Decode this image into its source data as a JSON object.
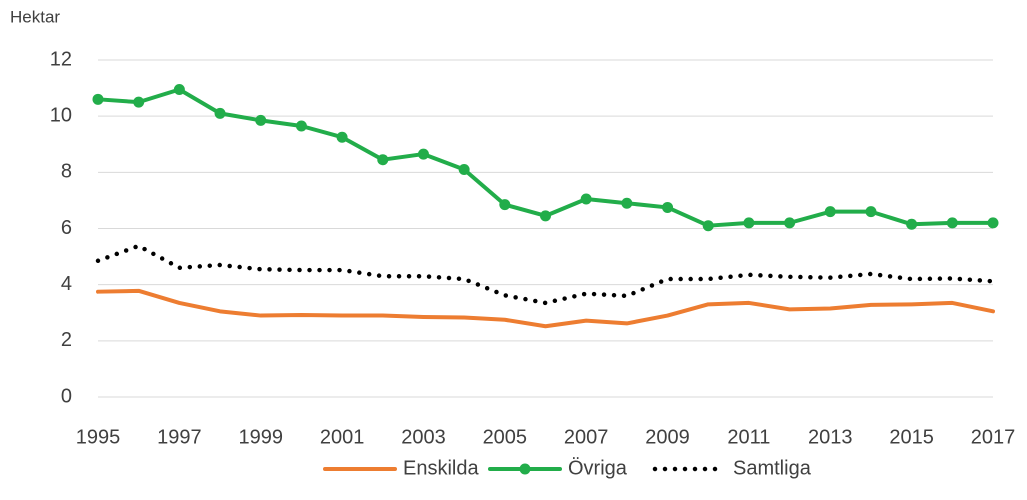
{
  "chart_data": {
    "type": "line",
    "y_label": "Hektar",
    "x": [
      1995,
      1996,
      1997,
      1998,
      1999,
      2000,
      2001,
      2002,
      2003,
      2004,
      2005,
      2006,
      2007,
      2008,
      2009,
      2010,
      2011,
      2012,
      2013,
      2014,
      2015,
      2016,
      2017
    ],
    "series": [
      {
        "name": "Enskilda",
        "color": "#ed7d31",
        "style": "solid",
        "markers": false,
        "values": [
          3.75,
          3.78,
          3.35,
          3.05,
          2.9,
          2.92,
          2.9,
          2.9,
          2.85,
          2.83,
          2.75,
          2.52,
          2.72,
          2.62,
          2.9,
          3.3,
          3.35,
          3.12,
          3.15,
          3.28,
          3.3,
          3.35,
          3.05
        ]
      },
      {
        "name": "Övriga",
        "color": "#22ad4a",
        "style": "solid",
        "markers": true,
        "values": [
          10.6,
          10.5,
          10.95,
          10.1,
          9.85,
          9.65,
          9.25,
          8.45,
          8.65,
          8.1,
          6.85,
          6.45,
          7.05,
          6.9,
          6.75,
          6.1,
          6.2,
          6.2,
          6.6,
          6.6,
          6.15,
          6.2,
          6.2
        ]
      },
      {
        "name": "Samtliga",
        "color": "#000000",
        "style": "dotted",
        "markers": false,
        "values": [
          4.85,
          5.38,
          4.6,
          4.7,
          4.55,
          4.52,
          4.52,
          4.3,
          4.3,
          4.2,
          3.62,
          3.35,
          3.68,
          3.6,
          4.2,
          4.2,
          4.35,
          4.28,
          4.25,
          4.38,
          4.2,
          4.22,
          4.12
        ]
      }
    ],
    "xlim": [
      1995,
      2017
    ],
    "xticks": [
      1995,
      1997,
      1999,
      2001,
      2003,
      2005,
      2007,
      2009,
      2011,
      2013,
      2015,
      2017
    ],
    "ylim": [
      0,
      12
    ],
    "yticks": [
      0,
      2,
      4,
      6,
      8,
      10,
      12
    ],
    "grid": true,
    "legend": "bottom"
  }
}
